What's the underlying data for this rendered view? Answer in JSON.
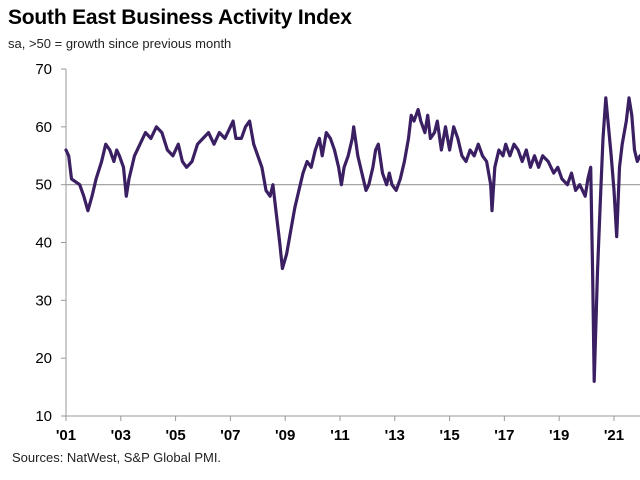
{
  "chart_data": {
    "type": "line",
    "title": "South East Business Activity Index",
    "subtitle": "sa, >50 = growth  since previous  month",
    "source": "Sources: NatWest, S&P Global PMI.",
    "xlabel": "",
    "ylabel": "",
    "ylim": [
      10,
      70
    ],
    "xlim": [
      2001.0,
      2021.95
    ],
    "yticks": [
      10,
      20,
      30,
      40,
      50,
      60,
      70
    ],
    "xtick_labels": [
      "'01",
      "'03",
      "'05",
      "'07",
      "'09",
      "'11",
      "'13",
      "'15",
      "'17",
      "'19",
      "'21"
    ],
    "xtick_values": [
      2001,
      2003,
      2005,
      2007,
      2009,
      2011,
      2013,
      2015,
      2017,
      2019,
      2021
    ],
    "reference_line": 50,
    "grid": false,
    "line_color": "#3b1f63",
    "reference_color": "#999999",
    "series": [
      {
        "points": [
          [
            2001.0,
            56
          ],
          [
            2001.1,
            55
          ],
          [
            2001.2,
            51
          ],
          [
            2001.35,
            50.5
          ],
          [
            2001.5,
            50
          ],
          [
            2001.65,
            48
          ],
          [
            2001.8,
            45.5
          ],
          [
            2001.95,
            48
          ],
          [
            2002.1,
            51
          ],
          [
            2002.3,
            54
          ],
          [
            2002.45,
            57
          ],
          [
            2002.6,
            56
          ],
          [
            2002.75,
            54
          ],
          [
            2002.85,
            56
          ],
          [
            2002.95,
            55
          ],
          [
            2003.1,
            53
          ],
          [
            2003.2,
            48
          ],
          [
            2003.3,
            51
          ],
          [
            2003.5,
            55
          ],
          [
            2003.7,
            57
          ],
          [
            2003.9,
            59
          ],
          [
            2004.1,
            58
          ],
          [
            2004.3,
            60
          ],
          [
            2004.5,
            59
          ],
          [
            2004.7,
            56
          ],
          [
            2004.9,
            55
          ],
          [
            2005.1,
            57
          ],
          [
            2005.25,
            54
          ],
          [
            2005.4,
            53
          ],
          [
            2005.6,
            54
          ],
          [
            2005.8,
            57
          ],
          [
            2006.0,
            58
          ],
          [
            2006.2,
            59
          ],
          [
            2006.4,
            57
          ],
          [
            2006.6,
            59
          ],
          [
            2006.8,
            58
          ],
          [
            2007.0,
            60
          ],
          [
            2007.1,
            61
          ],
          [
            2007.2,
            58
          ],
          [
            2007.4,
            58
          ],
          [
            2007.55,
            60
          ],
          [
            2007.7,
            61
          ],
          [
            2007.85,
            57
          ],
          [
            2008.0,
            55
          ],
          [
            2008.15,
            53
          ],
          [
            2008.3,
            49
          ],
          [
            2008.45,
            48
          ],
          [
            2008.55,
            50
          ],
          [
            2008.65,
            46
          ],
          [
            2008.8,
            40
          ],
          [
            2008.9,
            35.5
          ],
          [
            2009.05,
            38
          ],
          [
            2009.2,
            42
          ],
          [
            2009.35,
            46
          ],
          [
            2009.5,
            49
          ],
          [
            2009.65,
            52
          ],
          [
            2009.8,
            54
          ],
          [
            2009.95,
            53
          ],
          [
            2010.1,
            56
          ],
          [
            2010.25,
            58
          ],
          [
            2010.35,
            55
          ],
          [
            2010.5,
            59
          ],
          [
            2010.65,
            58
          ],
          [
            2010.8,
            56
          ],
          [
            2010.95,
            53
          ],
          [
            2011.05,
            50
          ],
          [
            2011.15,
            53
          ],
          [
            2011.3,
            55
          ],
          [
            2011.45,
            58
          ],
          [
            2011.5,
            60
          ],
          [
            2011.65,
            55
          ],
          [
            2011.8,
            52
          ],
          [
            2011.95,
            49
          ],
          [
            2012.05,
            50
          ],
          [
            2012.2,
            53
          ],
          [
            2012.3,
            56
          ],
          [
            2012.4,
            57
          ],
          [
            2012.55,
            52
          ],
          [
            2012.7,
            50
          ],
          [
            2012.8,
            52
          ],
          [
            2012.9,
            50
          ],
          [
            2013.05,
            49
          ],
          [
            2013.2,
            51
          ],
          [
            2013.35,
            54
          ],
          [
            2013.5,
            58
          ],
          [
            2013.6,
            62
          ],
          [
            2013.7,
            61
          ],
          [
            2013.85,
            63
          ],
          [
            2013.95,
            61
          ],
          [
            2014.1,
            59
          ],
          [
            2014.2,
            62
          ],
          [
            2014.3,
            58
          ],
          [
            2014.45,
            59
          ],
          [
            2014.55,
            61
          ],
          [
            2014.7,
            56
          ],
          [
            2014.85,
            60
          ],
          [
            2015.0,
            56
          ],
          [
            2015.15,
            60
          ],
          [
            2015.3,
            58
          ],
          [
            2015.45,
            55
          ],
          [
            2015.6,
            54
          ],
          [
            2015.75,
            56
          ],
          [
            2015.9,
            55
          ],
          [
            2016.05,
            57
          ],
          [
            2016.2,
            55
          ],
          [
            2016.35,
            54
          ],
          [
            2016.5,
            50
          ],
          [
            2016.55,
            45.5
          ],
          [
            2016.65,
            53
          ],
          [
            2016.8,
            56
          ],
          [
            2016.95,
            55
          ],
          [
            2017.05,
            57
          ],
          [
            2017.2,
            55
          ],
          [
            2017.35,
            57
          ],
          [
            2017.5,
            56
          ],
          [
            2017.65,
            54
          ],
          [
            2017.8,
            56
          ],
          [
            2017.95,
            53
          ],
          [
            2018.1,
            55
          ],
          [
            2018.25,
            53
          ],
          [
            2018.4,
            55
          ],
          [
            2018.6,
            54
          ],
          [
            2018.8,
            52
          ],
          [
            2018.95,
            53
          ],
          [
            2019.1,
            51
          ],
          [
            2019.3,
            50
          ],
          [
            2019.45,
            52
          ],
          [
            2019.6,
            49
          ],
          [
            2019.75,
            50
          ],
          [
            2019.85,
            49
          ],
          [
            2019.95,
            48
          ],
          [
            2020.05,
            51
          ],
          [
            2020.15,
            53
          ],
          [
            2020.22,
            35
          ],
          [
            2020.28,
            16
          ],
          [
            2020.4,
            35
          ],
          [
            2020.5,
            47
          ],
          [
            2020.6,
            58
          ],
          [
            2020.7,
            65
          ],
          [
            2020.8,
            60
          ],
          [
            2020.9,
            55
          ],
          [
            2021.0,
            49
          ],
          [
            2021.1,
            41
          ],
          [
            2021.2,
            53
          ],
          [
            2021.3,
            57
          ],
          [
            2021.45,
            61
          ],
          [
            2021.55,
            65
          ],
          [
            2021.65,
            62
          ],
          [
            2021.75,
            56
          ],
          [
            2021.85,
            54
          ],
          [
            2021.95,
            55
          ]
        ]
      }
    ]
  }
}
